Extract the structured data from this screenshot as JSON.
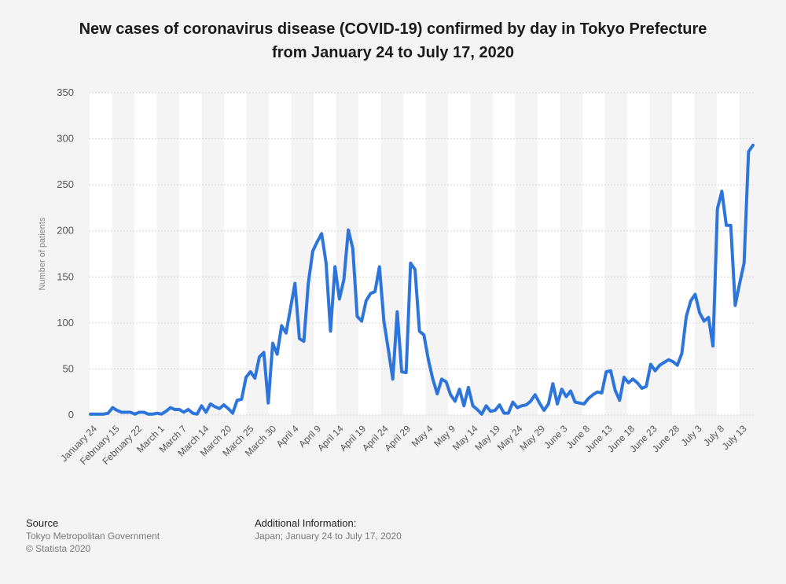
{
  "title_line1": "New cases of coronavirus disease (COVID-19) confirmed by day in Tokyo Prefecture",
  "title_line2": "from January 24 to July 17, 2020",
  "footer": {
    "source_label": "Source",
    "source_line1": "Tokyo Metropolitan Government",
    "source_line2": "© Statista 2020",
    "info_label": "Additional Information:",
    "info_text": "Japan; January 24 to July 17, 2020"
  },
  "colors": {
    "line": "#2d75db",
    "background": "#f4f4f4",
    "band": "#ffffff"
  },
  "chart_data": {
    "type": "line",
    "ylabel": "Number of patients",
    "xlabel": "",
    "ylim": [
      0,
      350
    ],
    "yticks": [
      0,
      50,
      100,
      150,
      200,
      250,
      300,
      350
    ],
    "grid": true,
    "x_tick_labels": [
      "January 24",
      "February 15",
      "February 22",
      "March 1",
      "March 7",
      "March 14",
      "March 20",
      "March 25",
      "March 30",
      "April 4",
      "April 9",
      "April 14",
      "April 19",
      "April 24",
      "April 29",
      "May 4",
      "May 9",
      "May 14",
      "May 19",
      "May 24",
      "May 29",
      "June 3",
      "June 8",
      "June 13",
      "June 18",
      "June 23",
      "June 28",
      "July 3",
      "July 8",
      "July 13"
    ],
    "series": [
      {
        "values": [
          1,
          1,
          1,
          1,
          2,
          8,
          5,
          3,
          3,
          3,
          1,
          3,
          3,
          1,
          1,
          2,
          1,
          4,
          8,
          6,
          6,
          3,
          6,
          2,
          1,
          10,
          3,
          12,
          9,
          7,
          11,
          7,
          2,
          16,
          17,
          41,
          47,
          40,
          63,
          68,
          13,
          78,
          66,
          97,
          89,
          116,
          143,
          83,
          80,
          143,
          178,
          188,
          197,
          165,
          91,
          161,
          126,
          147,
          201,
          181,
          107,
          102,
          124,
          132,
          134,
          161,
          102,
          71,
          39,
          112,
          47,
          46,
          165,
          158,
          91,
          87,
          60,
          39,
          23,
          39,
          36,
          22,
          15,
          28,
          10,
          30,
          10,
          6,
          1,
          10,
          4,
          5,
          11,
          2,
          2,
          14,
          8,
          10,
          11,
          15,
          22,
          13,
          5,
          12,
          34,
          12,
          28,
          20,
          26,
          14,
          13,
          12,
          18,
          22,
          25,
          24,
          47,
          48,
          27,
          16,
          41,
          35,
          39,
          35,
          29,
          31,
          55,
          48,
          54,
          57,
          60,
          58,
          54,
          67,
          107,
          124,
          131,
          111,
          102,
          106,
          75,
          224,
          243,
          206,
          206,
          119,
          143,
          165,
          286,
          293
        ]
      }
    ]
  }
}
